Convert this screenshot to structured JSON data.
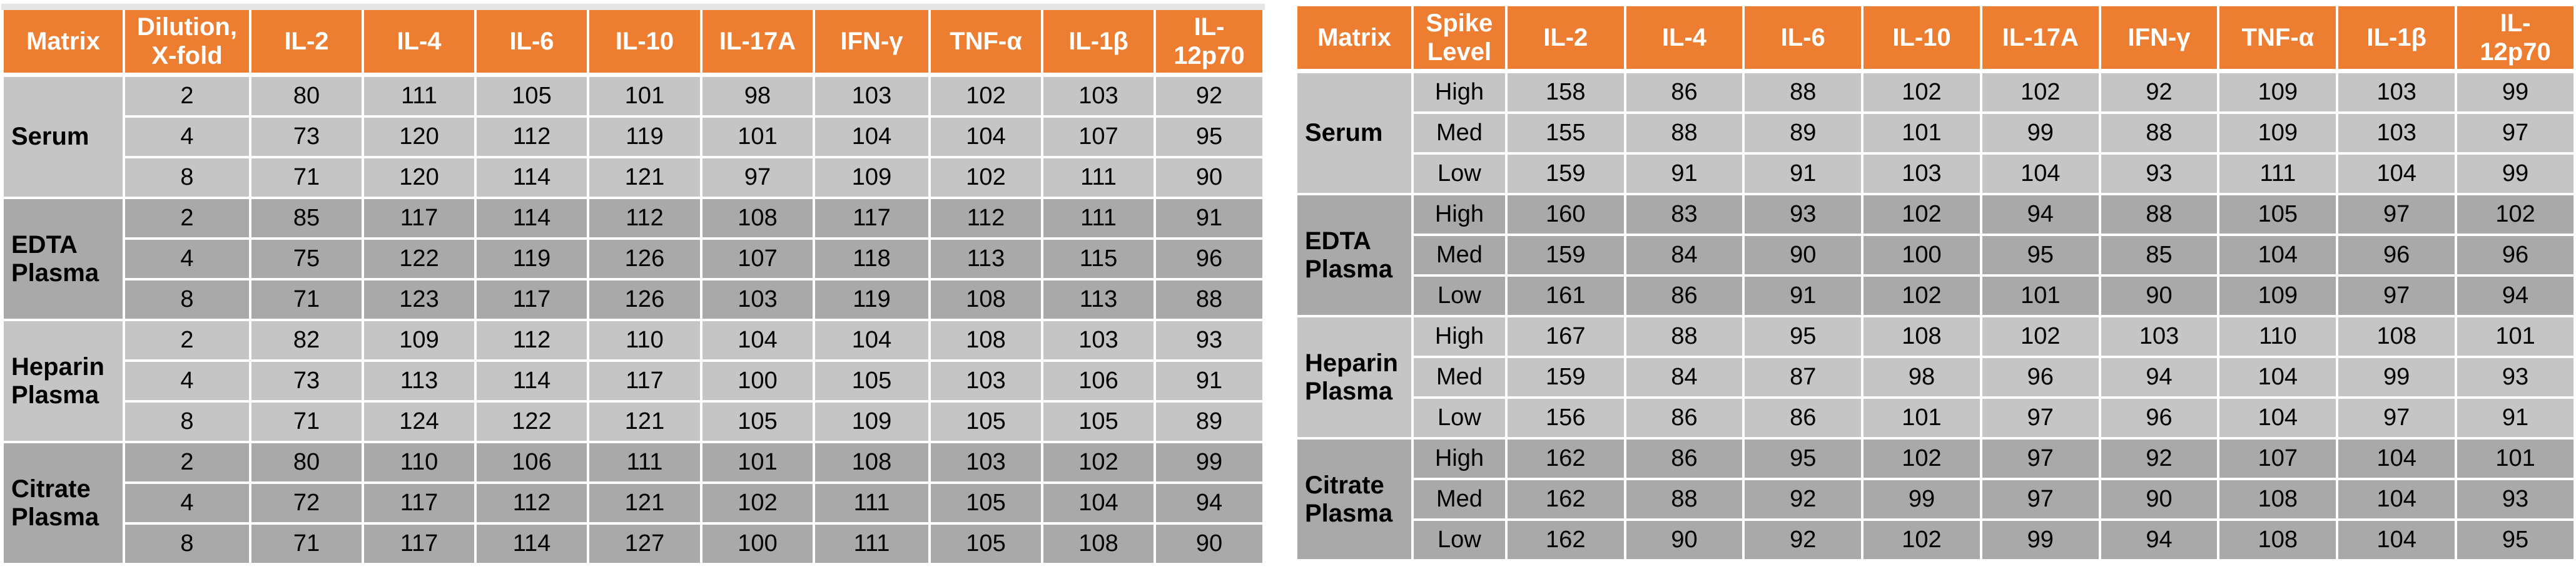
{
  "colors": {
    "header_bg": "#ED7D31",
    "header_text": "#FFFFFF",
    "row_light": "#C5C5C5",
    "row_dark": "#A9A9A9",
    "cell_text": "#000000",
    "grid_line": "#FFFFFF",
    "top_sliver": "#E5E5E5",
    "page_background": "#FFFFFF"
  },
  "tables": [
    {
      "name": "dilution-linearity-table",
      "columns": [
        "Matrix",
        "Dilution,\nX-fold",
        "IL-2",
        "IL-4",
        "IL-6",
        "IL-10",
        "IL-17A",
        "IFN-γ",
        "TNF-α",
        "IL-1β",
        "IL-\n12p70"
      ],
      "level_column": "Dilution, X-fold",
      "groups": [
        {
          "matrix": "Serum",
          "shade": "light",
          "rows": [
            {
              "level": "2",
              "values": [
                80,
                111,
                105,
                101,
                98,
                103,
                102,
                103,
                92
              ]
            },
            {
              "level": "4",
              "values": [
                73,
                120,
                112,
                119,
                101,
                104,
                104,
                107,
                95
              ]
            },
            {
              "level": "8",
              "values": [
                71,
                120,
                114,
                121,
                97,
                109,
                102,
                111,
                90
              ]
            }
          ]
        },
        {
          "matrix": "EDTA Plasma",
          "shade": "dark",
          "rows": [
            {
              "level": "2",
              "values": [
                85,
                117,
                114,
                112,
                108,
                117,
                112,
                111,
                91
              ]
            },
            {
              "level": "4",
              "values": [
                75,
                122,
                119,
                126,
                107,
                118,
                113,
                115,
                96
              ]
            },
            {
              "level": "8",
              "values": [
                71,
                123,
                117,
                126,
                103,
                119,
                108,
                113,
                88
              ]
            }
          ]
        },
        {
          "matrix": "Heparin Plasma",
          "shade": "light",
          "rows": [
            {
              "level": "2",
              "values": [
                82,
                109,
                112,
                110,
                104,
                104,
                108,
                103,
                93
              ]
            },
            {
              "level": "4",
              "values": [
                73,
                113,
                114,
                117,
                100,
                105,
                103,
                106,
                91
              ]
            },
            {
              "level": "8",
              "values": [
                71,
                124,
                122,
                121,
                105,
                109,
                105,
                105,
                89
              ]
            }
          ]
        },
        {
          "matrix": "Citrate Plasma",
          "shade": "dark",
          "rows": [
            {
              "level": "2",
              "values": [
                80,
                110,
                106,
                111,
                101,
                108,
                103,
                102,
                99
              ]
            },
            {
              "level": "4",
              "values": [
                72,
                117,
                112,
                121,
                102,
                111,
                105,
                104,
                94
              ]
            },
            {
              "level": "8",
              "values": [
                71,
                117,
                114,
                127,
                100,
                111,
                105,
                108,
                90
              ]
            }
          ]
        }
      ]
    },
    {
      "name": "spike-recovery-table",
      "columns": [
        "Matrix",
        "Spike\nLevel",
        "IL-2",
        "IL-4",
        "IL-6",
        "IL-10",
        "IL-17A",
        "IFN-γ",
        "TNF-α",
        "IL-1β",
        "IL-\n12p70"
      ],
      "level_column": "Spike Level",
      "groups": [
        {
          "matrix": "Serum",
          "shade": "light",
          "rows": [
            {
              "level": "High",
              "values": [
                158,
                86,
                88,
                102,
                102,
                92,
                109,
                103,
                99
              ]
            },
            {
              "level": "Med",
              "values": [
                155,
                88,
                89,
                101,
                99,
                88,
                109,
                103,
                97
              ]
            },
            {
              "level": "Low",
              "values": [
                159,
                91,
                91,
                103,
                104,
                93,
                111,
                104,
                99
              ]
            }
          ]
        },
        {
          "matrix": "EDTA Plasma",
          "shade": "dark",
          "rows": [
            {
              "level": "High",
              "values": [
                160,
                83,
                93,
                102,
                94,
                88,
                105,
                97,
                102
              ]
            },
            {
              "level": "Med",
              "values": [
                159,
                84,
                90,
                100,
                95,
                85,
                104,
                96,
                96
              ]
            },
            {
              "level": "Low",
              "values": [
                161,
                86,
                91,
                102,
                101,
                90,
                109,
                97,
                94
              ]
            }
          ]
        },
        {
          "matrix": "Heparin Plasma",
          "shade": "light",
          "rows": [
            {
              "level": "High",
              "values": [
                167,
                88,
                95,
                108,
                102,
                103,
                110,
                108,
                101
              ]
            },
            {
              "level": "Med",
              "values": [
                159,
                84,
                87,
                98,
                96,
                94,
                104,
                99,
                93
              ]
            },
            {
              "level": "Low",
              "values": [
                156,
                86,
                86,
                101,
                97,
                96,
                104,
                97,
                91
              ]
            }
          ]
        },
        {
          "matrix": "Citrate Plasma",
          "shade": "dark",
          "rows": [
            {
              "level": "High",
              "values": [
                162,
                86,
                95,
                102,
                97,
                92,
                107,
                104,
                101
              ]
            },
            {
              "level": "Med",
              "values": [
                162,
                88,
                92,
                99,
                97,
                90,
                108,
                104,
                93
              ]
            },
            {
              "level": "Low",
              "values": [
                162,
                90,
                92,
                102,
                99,
                94,
                108,
                104,
                95
              ]
            }
          ]
        }
      ]
    }
  ]
}
